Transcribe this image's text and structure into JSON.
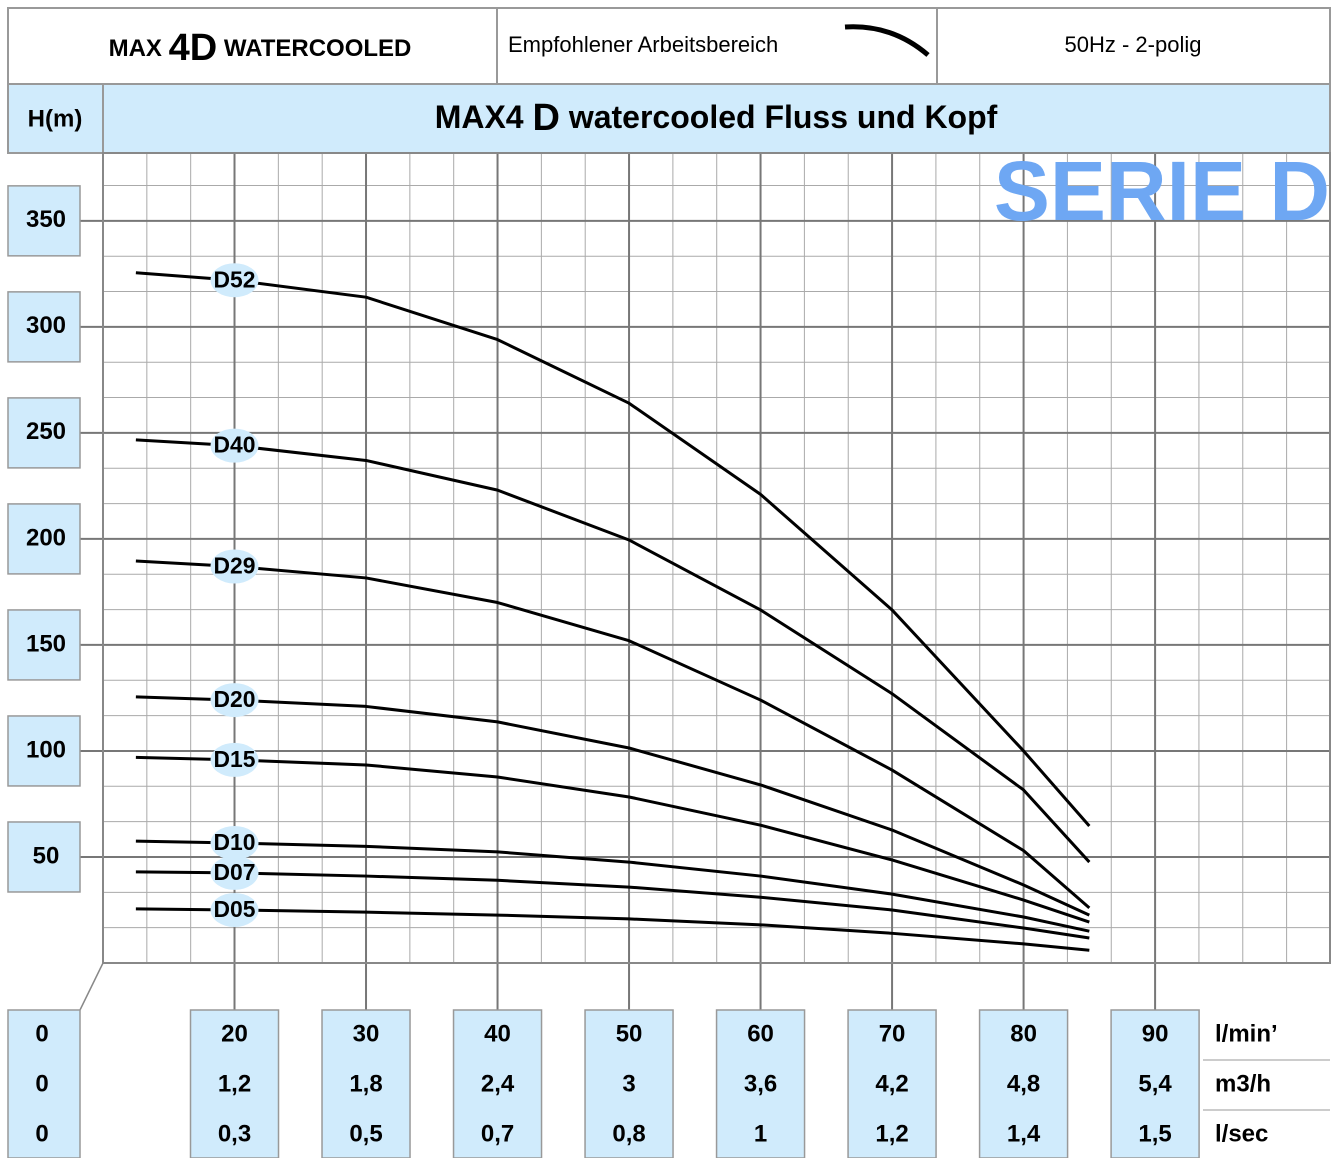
{
  "chart_data": {
    "type": "line",
    "heading": [
      "MAX ",
      "4D",
      " WATERCOOLED"
    ],
    "legend_note": "Empfohlener Arbeitsbereich",
    "frequency": "50Hz - 2-polig",
    "ylabel": "H(m)",
    "title": [
      "MAX4 ",
      "D",
      " watercooled Fluss und Kopf"
    ],
    "watermark": "SERIE D",
    "x": [
      12.5,
      20,
      30,
      40,
      50,
      60,
      70,
      80,
      85
    ],
    "xlim": [
      10,
      103.3
    ],
    "ylim": [
      0,
      382
    ],
    "xticks": [
      20,
      30,
      40,
      50,
      60,
      70,
      80,
      90
    ],
    "xticks_m3h": [
      "1,2",
      "1,8",
      "2,4",
      "3",
      "3,6",
      "4,2",
      "4,8",
      "5,4"
    ],
    "xticks_lsec": [
      "0,3",
      "0,5",
      "0,7",
      "0,8",
      "1",
      "1,2",
      "1,4",
      "1,5"
    ],
    "x_origin_labels": [
      "0",
      "0",
      "0"
    ],
    "x_units": [
      "l/min’",
      "m3/h",
      "l/sec"
    ],
    "yticks": [
      50,
      100,
      150,
      200,
      250,
      300,
      350
    ],
    "grid": true,
    "series": [
      {
        "name": "D52",
        "color": "#000000",
        "values": [
          325.5,
          322,
          314,
          294,
          264,
          221,
          166.5,
          100,
          64.6
        ]
      },
      {
        "name": "D40",
        "color": "#000000",
        "values": [
          246.7,
          244,
          237,
          223,
          199.5,
          166.5,
          127,
          81.6,
          47.6
        ]
      },
      {
        "name": "D29",
        "color": "#000000",
        "values": [
          189.6,
          187,
          181.6,
          170,
          152,
          124,
          91,
          53,
          26
        ]
      },
      {
        "name": "D20",
        "color": "#000000",
        "values": [
          125.5,
          124,
          121,
          113.7,
          101.4,
          84,
          62.7,
          36.8,
          22.6
        ]
      },
      {
        "name": "D15",
        "color": "#000000",
        "values": [
          97,
          95.8,
          93.4,
          87.7,
          78.3,
          65,
          48.6,
          29.7,
          19.3
        ]
      },
      {
        "name": "D10",
        "color": "#000000",
        "values": [
          57.5,
          56.6,
          55,
          52.4,
          47.6,
          41,
          32.5,
          21.7,
          15
        ]
      },
      {
        "name": "D07",
        "color": "#000000",
        "values": [
          43,
          42.5,
          41,
          39,
          35.8,
          31,
          25,
          16.5,
          11.8
        ]
      },
      {
        "name": "D05",
        "color": "#000000",
        "values": [
          25.5,
          25,
          24,
          22.6,
          20.8,
          18,
          14,
          9,
          6
        ]
      }
    ]
  }
}
